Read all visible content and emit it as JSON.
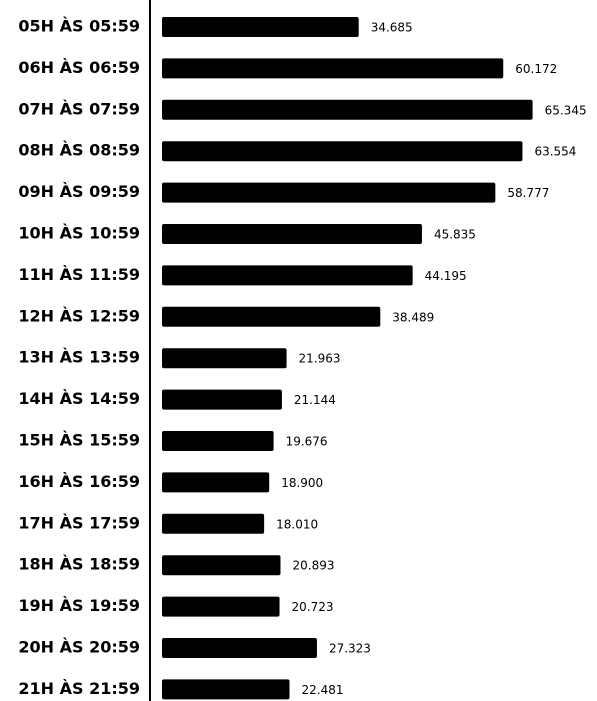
{
  "chart_data": {
    "type": "barh",
    "categories": [
      "05H ÀS 05:59",
      "06H ÀS 06:59",
      "07H ÀS 07:59",
      "08H ÀS 08:59",
      "09H ÀS 09:59",
      "10H ÀS 10:59",
      "11H ÀS 11:59",
      "12H ÀS 12:59",
      "13H ÀS 13:59",
      "14H ÀS 14:59",
      "15H ÀS 15:59",
      "16H ÀS 16:59",
      "17H ÀS 17:59",
      "18H ÀS 18:59",
      "19H ÀS 19:59",
      "20H ÀS 20:59",
      "21H ÀS 21:59"
    ],
    "values": [
      34685,
      60172,
      65345,
      63554,
      58777,
      45835,
      44195,
      38489,
      21963,
      21144,
      19676,
      18900,
      18010,
      20893,
      20723,
      27323,
      22481
    ],
    "value_labels": [
      "34.685",
      "60.172",
      "65.345",
      "63.554",
      "58.777",
      "45.835",
      "44.195",
      "38.489",
      "21.963",
      "21.144",
      "19.676",
      "18.900",
      "18.010",
      "20.893",
      "20.723",
      "27.323",
      "22.481"
    ],
    "color": "#000000",
    "xlim": [
      0,
      70000
    ]
  }
}
